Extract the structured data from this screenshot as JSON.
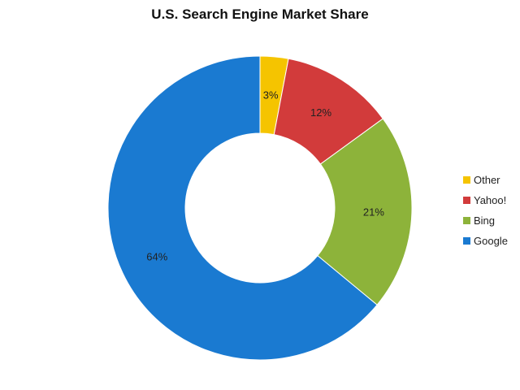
{
  "chart_data": {
    "type": "pie",
    "donut": true,
    "title": "U.S. Search Engine Market Share",
    "categories": [
      "Other",
      "Yahoo!",
      "Bing",
      "Google"
    ],
    "values": [
      3,
      12,
      21,
      64
    ],
    "data_labels": [
      "3%",
      "12%",
      "21%",
      "64%"
    ],
    "colors": [
      "#F5C400",
      "#D23B3B",
      "#8DB33A",
      "#1A7AD1"
    ],
    "legend_position": "right"
  }
}
